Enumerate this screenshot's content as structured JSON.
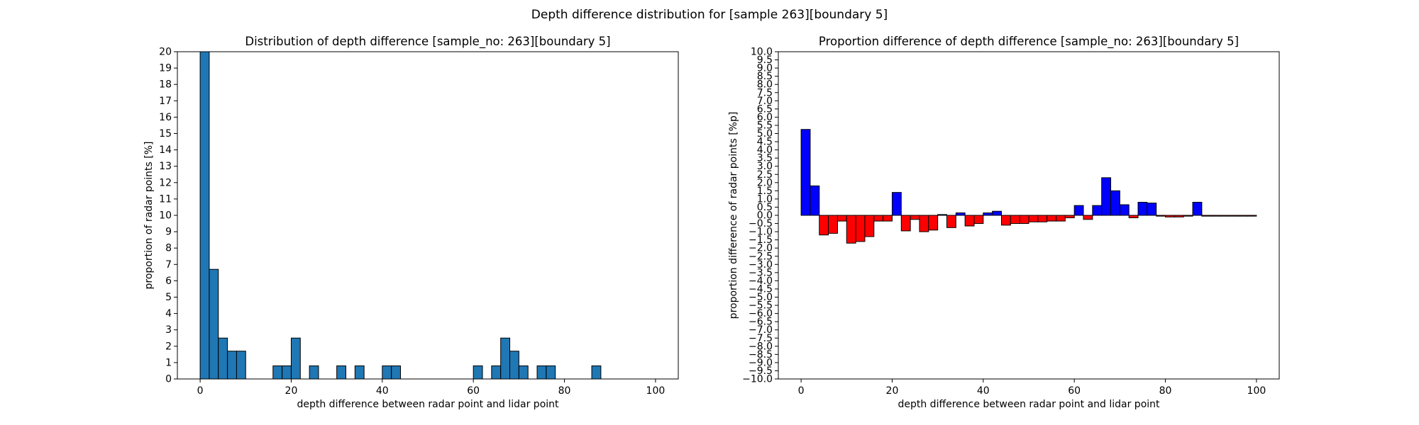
{
  "figure": {
    "suptitle": "Depth difference distribution for [sample 263][boundary 5]"
  },
  "chart_data": [
    {
      "type": "bar",
      "title": "Distribution of depth difference [sample_no: 263][boundary 5]",
      "xlabel": "depth difference between radar point and lidar point",
      "ylabel": "proportion of radar points [%]",
      "xlim": [
        -5,
        105
      ],
      "ylim": [
        0,
        20
      ],
      "xticks": [
        0,
        20,
        40,
        60,
        80,
        100
      ],
      "yticks": [
        0,
        1,
        2,
        3,
        4,
        5,
        6,
        7,
        8,
        9,
        10,
        11,
        12,
        13,
        14,
        15,
        16,
        17,
        18,
        19,
        20
      ],
      "bin_width": 2,
      "bar_color": "#1f77b4",
      "edge_color": "#000000",
      "bins": [
        {
          "x": 0,
          "value": 20.5
        },
        {
          "x": 2,
          "value": 6.7
        },
        {
          "x": 4,
          "value": 2.5
        },
        {
          "x": 6,
          "value": 1.7
        },
        {
          "x": 8,
          "value": 1.7
        },
        {
          "x": 16,
          "value": 0.8
        },
        {
          "x": 18,
          "value": 0.8
        },
        {
          "x": 20,
          "value": 2.5
        },
        {
          "x": 24,
          "value": 0.8
        },
        {
          "x": 30,
          "value": 0.8
        },
        {
          "x": 34,
          "value": 0.8
        },
        {
          "x": 40,
          "value": 0.8
        },
        {
          "x": 42,
          "value": 0.8
        },
        {
          "x": 60,
          "value": 0.8
        },
        {
          "x": 64,
          "value": 0.8
        },
        {
          "x": 66,
          "value": 2.5
        },
        {
          "x": 68,
          "value": 1.7
        },
        {
          "x": 70,
          "value": 0.8
        },
        {
          "x": 74,
          "value": 0.8
        },
        {
          "x": 76,
          "value": 0.8
        },
        {
          "x": 86,
          "value": 0.8
        }
      ]
    },
    {
      "type": "bar",
      "title": "Proportion difference of depth difference [sample_no: 263][boundary 5]",
      "xlabel": "depth difference between radar point and lidar point",
      "ylabel": "proportion difference of radar points [%p]",
      "xlim": [
        -5,
        105
      ],
      "ylim": [
        -10,
        10
      ],
      "xticks": [
        0,
        20,
        40,
        60,
        80,
        100
      ],
      "yticks": [
        10.0,
        9.5,
        9.0,
        8.5,
        8.0,
        7.5,
        7.0,
        6.5,
        6.0,
        5.5,
        5.0,
        4.5,
        4.0,
        3.5,
        3.0,
        2.5,
        2.0,
        1.5,
        1.0,
        0.5,
        0.0,
        -0.5,
        -1.0,
        -1.5,
        -2.0,
        -2.5,
        -3.0,
        -3.5,
        -4.0,
        -4.5,
        -5.0,
        -5.5,
        -6.0,
        -6.5,
        -7.0,
        -7.5,
        -8.0,
        -8.5,
        -9.0,
        -9.5,
        -10.0
      ],
      "bin_width": 2,
      "positive_color": "#0000ff",
      "negative_color": "#ff0000",
      "edge_color": "#000000",
      "bins": [
        {
          "x": 0,
          "value": 5.25
        },
        {
          "x": 2,
          "value": 1.8
        },
        {
          "x": 4,
          "value": -1.2
        },
        {
          "x": 6,
          "value": -1.1
        },
        {
          "x": 8,
          "value": -0.35
        },
        {
          "x": 10,
          "value": -1.7
        },
        {
          "x": 12,
          "value": -1.6
        },
        {
          "x": 14,
          "value": -1.3
        },
        {
          "x": 16,
          "value": -0.35
        },
        {
          "x": 18,
          "value": -0.35
        },
        {
          "x": 20,
          "value": 1.4
        },
        {
          "x": 22,
          "value": -0.95
        },
        {
          "x": 24,
          "value": -0.25
        },
        {
          "x": 26,
          "value": -1.0
        },
        {
          "x": 28,
          "value": -0.9
        },
        {
          "x": 30,
          "value": 0.05
        },
        {
          "x": 32,
          "value": -0.75
        },
        {
          "x": 34,
          "value": 0.15
        },
        {
          "x": 36,
          "value": -0.65
        },
        {
          "x": 38,
          "value": -0.5
        },
        {
          "x": 40,
          "value": 0.15
        },
        {
          "x": 42,
          "value": 0.25
        },
        {
          "x": 44,
          "value": -0.6
        },
        {
          "x": 46,
          "value": -0.5
        },
        {
          "x": 48,
          "value": -0.5
        },
        {
          "x": 50,
          "value": -0.4
        },
        {
          "x": 52,
          "value": -0.4
        },
        {
          "x": 54,
          "value": -0.35
        },
        {
          "x": 56,
          "value": -0.35
        },
        {
          "x": 58,
          "value": -0.15
        },
        {
          "x": 60,
          "value": 0.6
        },
        {
          "x": 62,
          "value": -0.25
        },
        {
          "x": 64,
          "value": 0.6
        },
        {
          "x": 66,
          "value": 2.3
        },
        {
          "x": 68,
          "value": 1.5
        },
        {
          "x": 70,
          "value": 0.65
        },
        {
          "x": 72,
          "value": -0.15
        },
        {
          "x": 74,
          "value": 0.8
        },
        {
          "x": 76,
          "value": 0.75
        },
        {
          "x": 78,
          "value": -0.05
        },
        {
          "x": 80,
          "value": -0.1
        },
        {
          "x": 82,
          "value": -0.1
        },
        {
          "x": 84,
          "value": -0.05
        },
        {
          "x": 86,
          "value": 0.8
        },
        {
          "x": 88,
          "value": -0.05
        },
        {
          "x": 90,
          "value": -0.05
        },
        {
          "x": 92,
          "value": -0.05
        },
        {
          "x": 94,
          "value": -0.05
        },
        {
          "x": 96,
          "value": -0.05
        },
        {
          "x": 98,
          "value": -0.05
        }
      ]
    }
  ]
}
